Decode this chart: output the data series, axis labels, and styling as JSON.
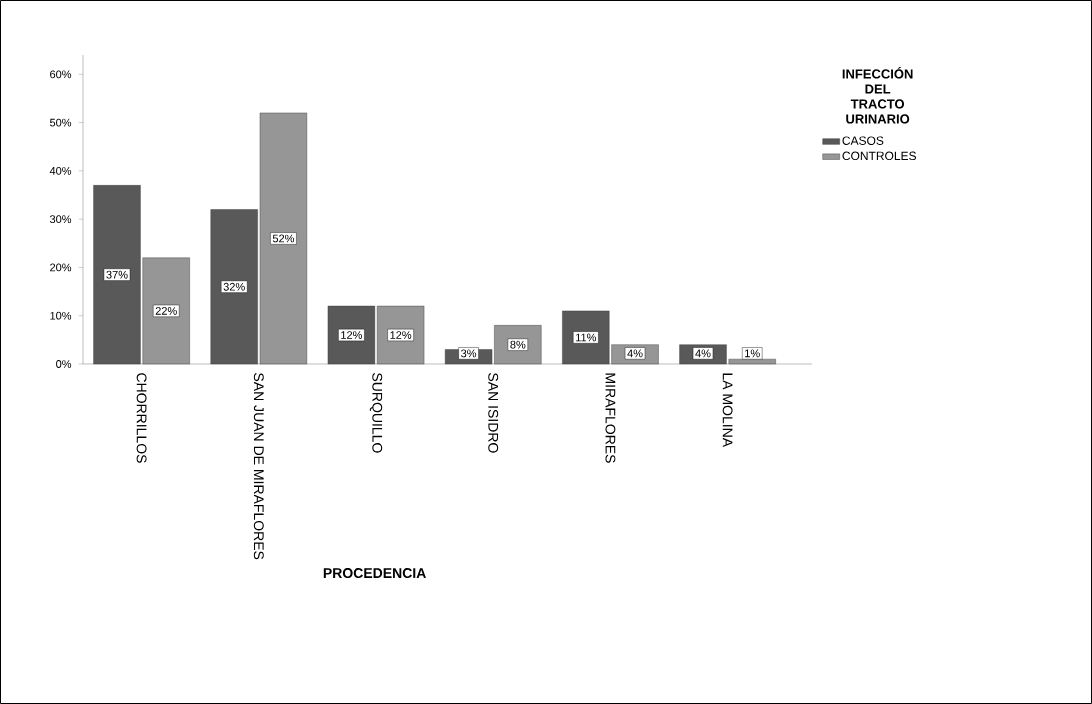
{
  "chart_data": {
    "type": "bar",
    "xlabel": "PROCEDENCIA",
    "legend_title": "INFECCIÓN DEL TRACTO URINARIO",
    "legend": "top right",
    "categories": [
      "CHORRILLOS",
      "SAN JUAN DE MIRAFLORES",
      "SURQUILLO",
      "SAN ISIDRO",
      "MIRAFLORES",
      "LA MOLINA"
    ],
    "series": [
      {
        "name": "CASOS",
        "color": "#595959",
        "values": [
          37,
          32,
          12,
          3,
          11,
          4
        ],
        "value_labels": [
          "37%",
          "32%",
          "12%",
          "3%",
          "11%",
          "4%"
        ]
      },
      {
        "name": "CONTROLES",
        "color": "#969696",
        "values": [
          22,
          52,
          12,
          8,
          4,
          1
        ],
        "value_labels": [
          "22%",
          "52%",
          "12%",
          "8%",
          "4%",
          "1%"
        ]
      }
    ],
    "ylim": [
      0,
      64
    ],
    "yticks": [
      {
        "value": 0,
        "label": "0%"
      },
      {
        "value": 10,
        "label": "10%"
      },
      {
        "value": 20,
        "label": "20%"
      },
      {
        "value": 30,
        "label": "30%"
      },
      {
        "value": 40,
        "label": "40%"
      },
      {
        "value": 50,
        "label": "50%"
      },
      {
        "value": 60,
        "label": "60%"
      }
    ]
  }
}
